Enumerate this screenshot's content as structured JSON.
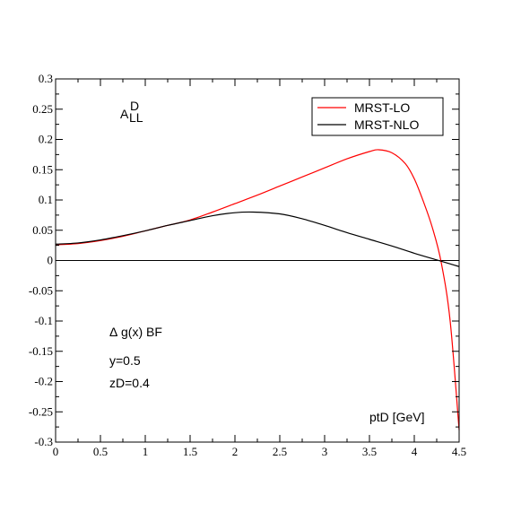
{
  "chart_data": {
    "type": "line",
    "title": "",
    "xlabel": "ptD [GeV]",
    "ylabel": "",
    "xlim": [
      0,
      4.5
    ],
    "ylim": [
      -0.3,
      0.3
    ],
    "grid": false,
    "legend_position": "top-right",
    "x_ticks": [
      "0",
      "0.5",
      "1",
      "1.5",
      "2",
      "2.5",
      "3",
      "3.5",
      "4",
      "4.5"
    ],
    "y_ticks": [
      "-0.3",
      "-0.25",
      "-0.2",
      "-0.15",
      "-0.1",
      "-0.05",
      "0",
      "0.05",
      "0.1",
      "0.15",
      "0.2",
      "0.25",
      "0.3"
    ],
    "zero_line": true,
    "series": [
      {
        "name": "MRST-LO",
        "color": "#ff0000",
        "x": [
          0,
          0.25,
          0.5,
          0.75,
          1.0,
          1.25,
          1.5,
          1.75,
          2.0,
          2.25,
          2.5,
          2.75,
          3.0,
          3.25,
          3.5,
          3.6,
          3.75,
          3.9,
          4.0,
          4.1,
          4.2,
          4.3,
          4.4,
          4.5
        ],
        "y": [
          0.026,
          0.028,
          0.033,
          0.04,
          0.049,
          0.058,
          0.067,
          0.08,
          0.094,
          0.108,
          0.123,
          0.138,
          0.153,
          0.168,
          0.18,
          0.183,
          0.178,
          0.16,
          0.135,
          0.098,
          0.055,
          -0.003,
          -0.1,
          -0.28
        ]
      },
      {
        "name": "MRST-NLO",
        "color": "#000000",
        "x": [
          0,
          0.25,
          0.5,
          0.75,
          1.0,
          1.25,
          1.5,
          1.75,
          2.0,
          2.2,
          2.5,
          2.75,
          3.0,
          3.25,
          3.5,
          3.75,
          4.0,
          4.25,
          4.5
        ],
        "y": [
          0.027,
          0.029,
          0.034,
          0.041,
          0.049,
          0.058,
          0.066,
          0.074,
          0.079,
          0.08,
          0.077,
          0.069,
          0.058,
          0.046,
          0.035,
          0.024,
          0.012,
          0.001,
          -0.01
        ]
      }
    ],
    "annotations": {
      "asym_main": "A",
      "asym_sup": "D",
      "asym_sub": "LL",
      "delta_symbol": "Δ",
      "gluon_label": "g(x)  BF",
      "y_value": "y=0.5",
      "z_value": "zD=0.4"
    }
  }
}
